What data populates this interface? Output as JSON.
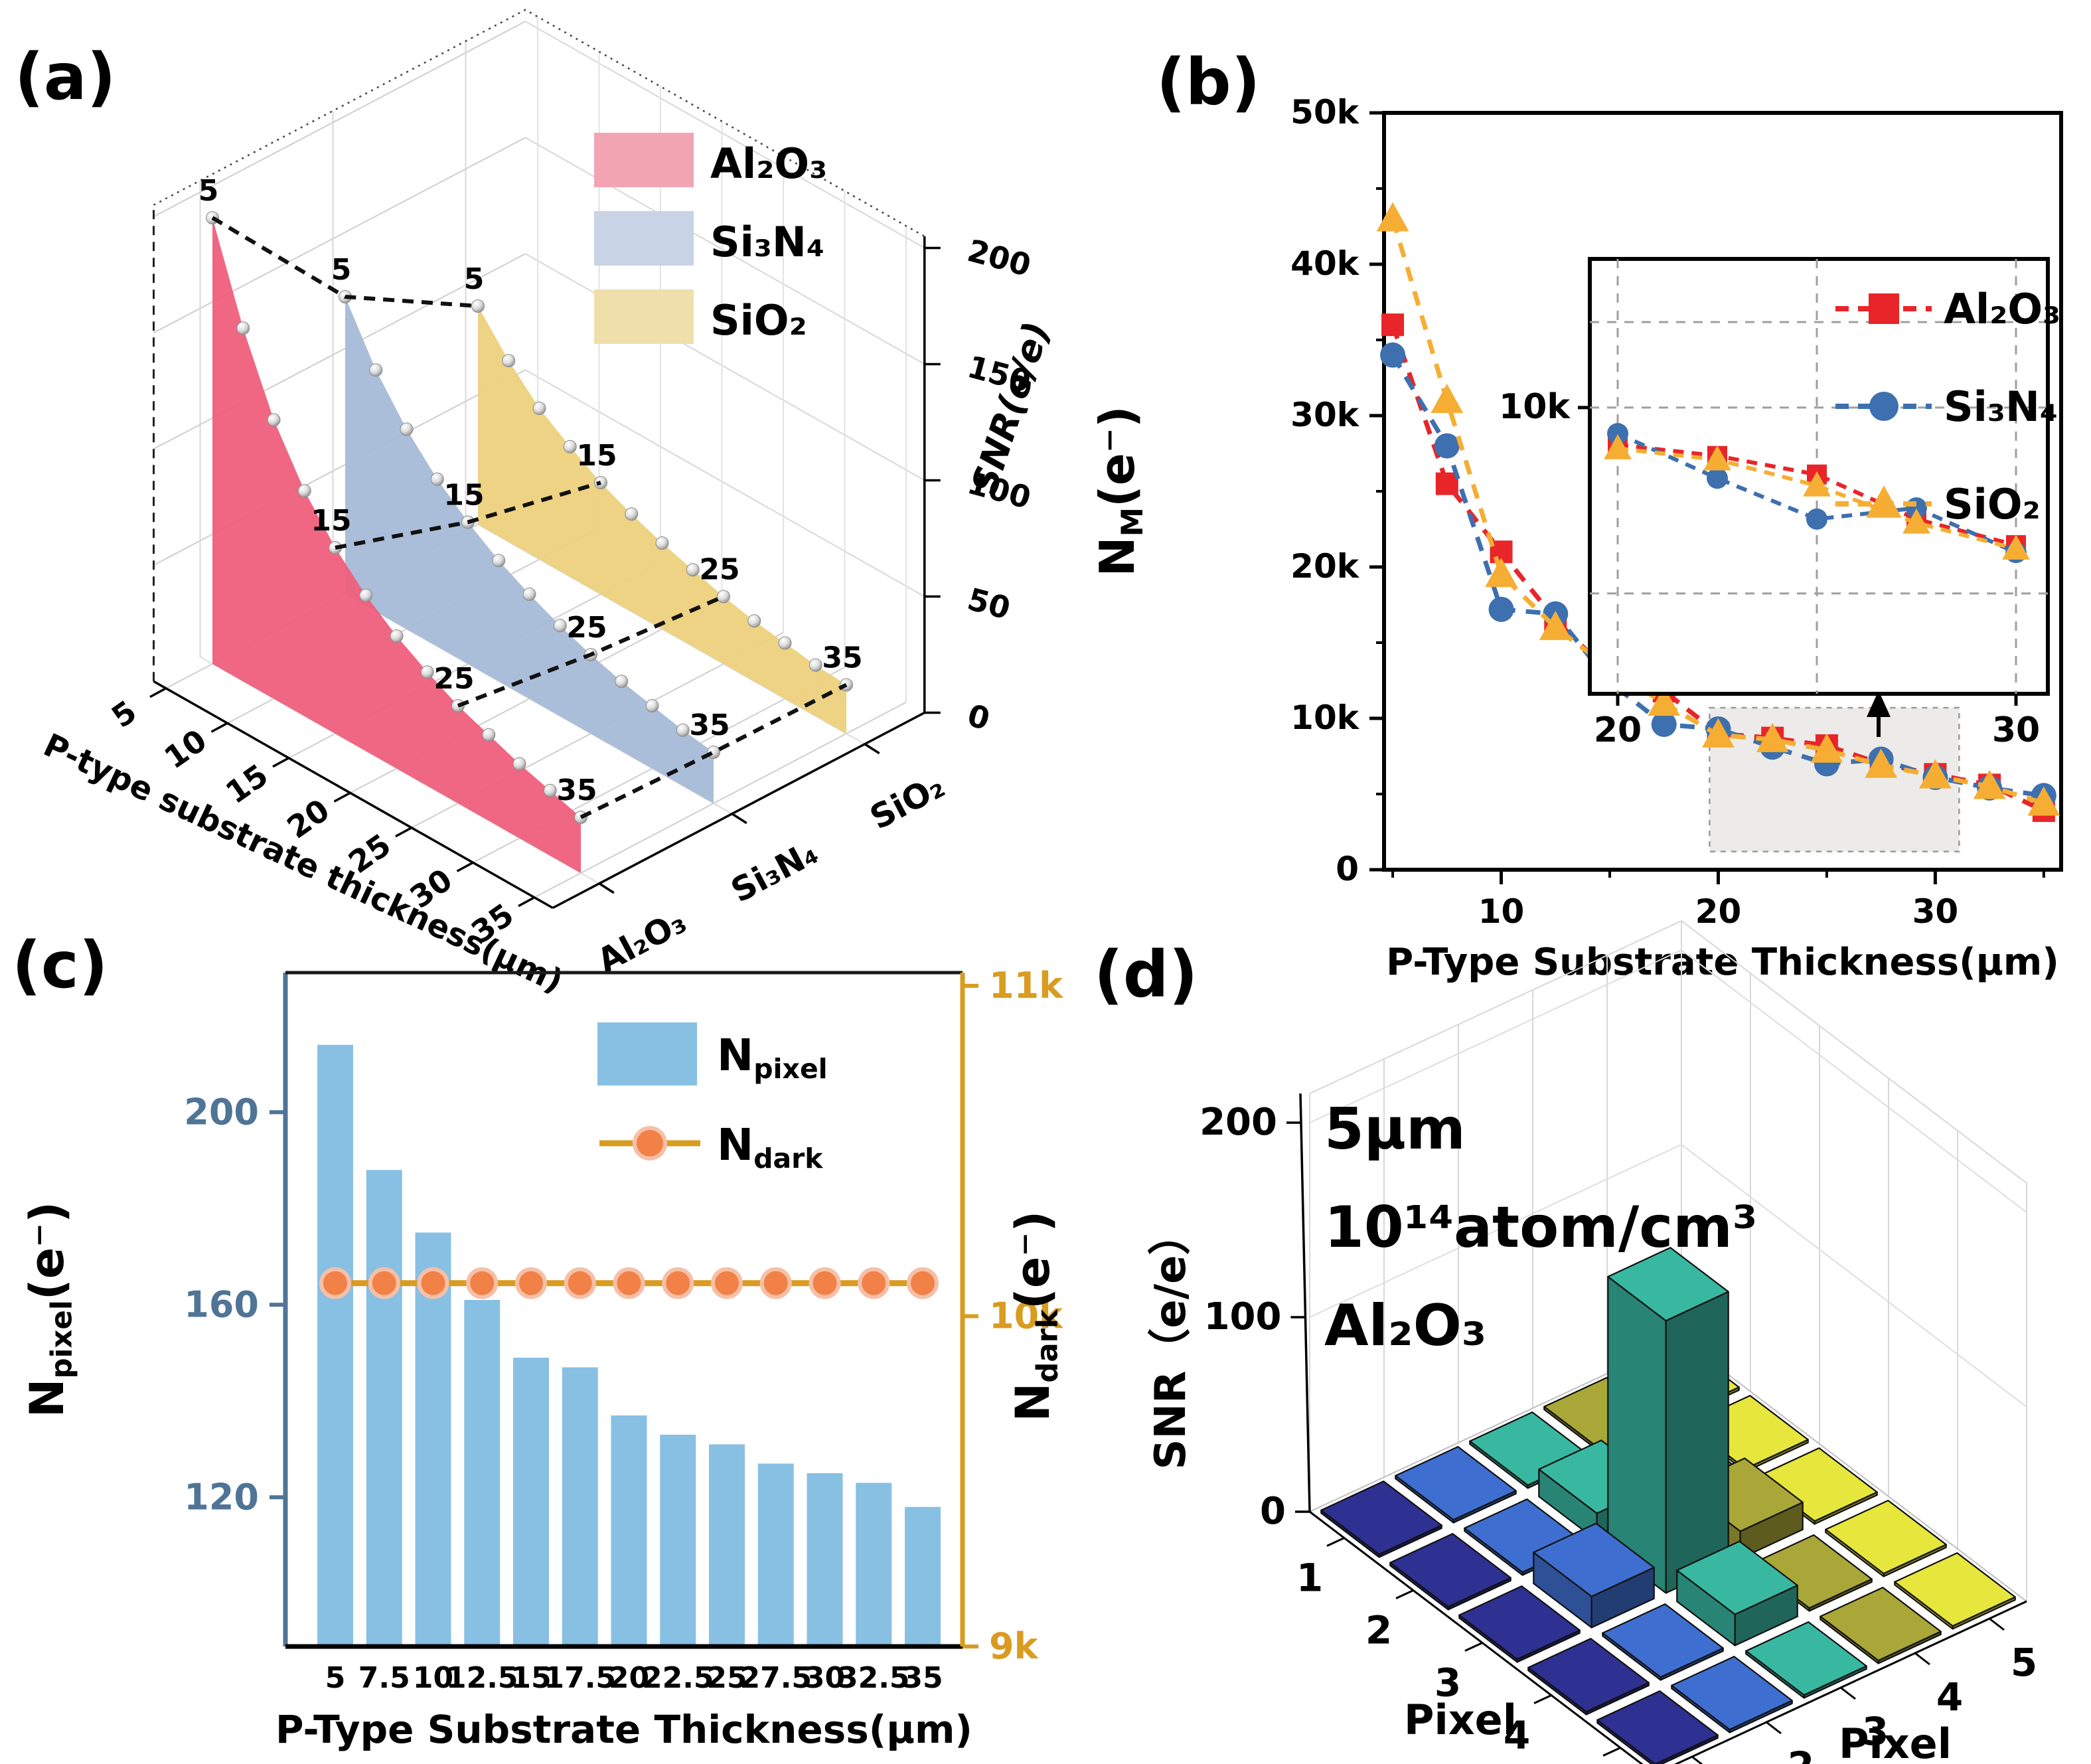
{
  "figure": {
    "background": "#ffffff"
  },
  "panels": {
    "a": {
      "label": "(a)"
    },
    "b": {
      "label": "(b)"
    },
    "c": {
      "label": "(c)"
    },
    "d": {
      "label": "(d)"
    }
  },
  "chart_data": [
    {
      "id": "a",
      "type": "ribbon3d",
      "xlabel": "P-type substrate thickness(μm)",
      "zlabel": "SNR(e/e)",
      "x": [
        5,
        7.5,
        10,
        12.5,
        15,
        17.5,
        20,
        22.5,
        25,
        27.5,
        30,
        32.5,
        35
      ],
      "xtick_labels": [
        "5",
        "10",
        "15",
        "20",
        "25",
        "30",
        "35"
      ],
      "xticks": [
        5,
        10,
        15,
        20,
        25,
        30,
        35
      ],
      "ztick_labels": [
        "0",
        "50",
        "100",
        "150",
        "200"
      ],
      "zticks": [
        0,
        50,
        100,
        150,
        200
      ],
      "zlim": [
        0,
        200
      ],
      "connector_thicknesses": [
        5,
        15,
        25,
        35
      ],
      "marker_color": "#d9d9d9",
      "series": [
        {
          "name": "Al2O3",
          "label": "Al₂O₃",
          "ribbon_color": "#ee5f7b",
          "legend_color": "#f2a4b2",
          "values": [
            192,
            152,
            120,
            97,
            80,
            67,
            57,
            49,
            42,
            37,
            32,
            28,
            24
          ]
        },
        {
          "name": "Si3N4",
          "label": "Si₃N₄",
          "ribbon_color": "#a6bbd7",
          "legend_color": "#c8d3e5",
          "values": [
            128,
            104,
            86,
            72,
            61,
            52,
            45,
            39,
            34,
            30,
            27,
            24,
            22
          ]
        },
        {
          "name": "SiO2",
          "label": "SiO₂",
          "ribbon_color": "#ecd17c",
          "legend_color": "#eedfab",
          "values": [
            94,
            78,
            65,
            56,
            48,
            42,
            37,
            33,
            29,
            26,
            24,
            22,
            21
          ]
        }
      ]
    },
    {
      "id": "b",
      "type": "line",
      "xlabel": "P-Type Substrate Thickness(μm)",
      "ylabel_parts": [
        {
          "t": "N"
        },
        {
          "t": "M",
          "sub": true
        },
        {
          "t": "(e⁻)"
        }
      ],
      "xlim": [
        4.6,
        35.8
      ],
      "ylim": [
        0,
        50000
      ],
      "x": [
        5,
        7.5,
        10,
        12.5,
        15,
        17.5,
        20,
        22.5,
        25,
        27.5,
        30,
        32.5,
        35
      ],
      "xticks": [
        {
          "v": 10,
          "label": "10"
        },
        {
          "v": 20,
          "label": "20"
        },
        {
          "v": 30,
          "label": "30"
        }
      ],
      "xminor": [
        5,
        15,
        25,
        35
      ],
      "yticks": [
        {
          "v": 0,
          "label": "0"
        },
        {
          "v": 10000,
          "label": "10k"
        },
        {
          "v": 20000,
          "label": "20k"
        },
        {
          "v": 30000,
          "label": "30k"
        },
        {
          "v": 40000,
          "label": "40k"
        },
        {
          "v": 50000,
          "label": "50k"
        }
      ],
      "yminor": [
        5000,
        15000,
        25000,
        35000,
        45000
      ],
      "series": [
        {
          "name": "Al2O3",
          "label": "Al₂O₃",
          "color": "#e82529",
          "marker": "square",
          "values": [
            36000,
            25500,
            21000,
            16500,
            13000,
            11800,
            9000,
            8700,
            8200,
            7000,
            6300,
            5600,
            3900
          ]
        },
        {
          "name": "Si3N4",
          "label": "Si₃N₄",
          "color": "#3e6fae",
          "marker": "circle",
          "values": [
            34000,
            28000,
            17200,
            16900,
            12400,
            9600,
            9300,
            8100,
            7000,
            7300,
            6100,
            5400,
            4900
          ]
        },
        {
          "name": "SiO2",
          "label": "SiO₂",
          "color": "#f5ae33",
          "marker": "triangle",
          "values": [
            43000,
            31000,
            19500,
            16000,
            13300,
            11000,
            8900,
            8600,
            7900,
            6900,
            6200,
            5500,
            4400
          ]
        }
      ],
      "highlight_region": {
        "x0": 19.6,
        "x1": 31.1,
        "fill": "#ecebe9",
        "stroke": "#9a9a9a"
      },
      "inset": {
        "xlim": [
          19.3,
          30.8
        ],
        "ylim": [
          2300,
          14000
        ],
        "gridx": [
          20,
          25,
          30
        ],
        "gridy": [
          12300,
          10000,
          5000
        ],
        "ytick": {
          "v": 10000,
          "label": "10k"
        },
        "xtick_labels": [
          {
            "v": 20,
            "label": "20"
          },
          {
            "v": 30,
            "label": "30"
          }
        ],
        "points_x": [
          20,
          22.5,
          25,
          27.5,
          30
        ]
      }
    },
    {
      "id": "c",
      "type": "bar-line",
      "xlabel": "P-Type Substrate Thickness(μm)",
      "ylabel_left_parts": [
        {
          "t": "N"
        },
        {
          "t": "pixel",
          "sub": true
        },
        {
          "t": "(e⁻)"
        }
      ],
      "ylabel_right_parts": [
        {
          "t": "N"
        },
        {
          "t": "dark",
          "sub": true
        },
        {
          "t": "(e⁻)"
        }
      ],
      "categories": [
        "5",
        "7.5",
        "10",
        "12.5",
        "15",
        "17.5",
        "20",
        "22.5",
        "25",
        "27.5",
        "30",
        "32.5",
        "35"
      ],
      "bar_values": [
        214,
        188,
        175,
        161,
        149,
        147,
        137,
        133,
        131,
        127,
        125,
        123,
        118
      ],
      "bar_color": "#88c0e4",
      "left_axis": {
        "color": "#4f7496",
        "lim": [
          89,
          229
        ],
        "ticks": [
          {
            "v": 120,
            "label": "120"
          },
          {
            "v": 160,
            "label": "160"
          },
          {
            "v": 200,
            "label": "200"
          }
        ]
      },
      "right_axis": {
        "color": "#d99c20",
        "lim": [
          9,
          11.04
        ],
        "ticks": [
          {
            "v": 9,
            "label": "9k"
          },
          {
            "v": 10,
            "label": "10k"
          },
          {
            "v": 11,
            "label": "11k"
          }
        ]
      },
      "line": {
        "value_k": 10.1,
        "color": "#d99c20",
        "marker_fill": "#f18147",
        "marker_stroke": "#f6c0a8",
        "label_parts": [
          {
            "t": "N"
          },
          {
            "t": "dark",
            "sub": true
          }
        ]
      },
      "legend": {
        "bar_label_parts": [
          {
            "t": "N"
          },
          {
            "t": "pixel",
            "sub": true
          }
        ]
      }
    },
    {
      "id": "d",
      "type": "bar3d",
      "title_lines": [
        "5μm",
        "10¹⁴atom/cm³",
        "Al₂O₃"
      ],
      "zlabel": "SNR（e/e）",
      "zticks": [
        {
          "v": 0,
          "label": "0"
        },
        {
          "v": 100,
          "label": "100"
        },
        {
          "v": 200,
          "label": "200"
        }
      ],
      "axis_label_left": "Pixel",
      "axis_label_right": "Pixel",
      "axis_ticks": [
        "1",
        "2",
        "3",
        "4",
        "5"
      ],
      "colors_by_col": [
        "#2e3092",
        "#3e6fd0",
        "#38b8a1",
        "#a9a737",
        "#e6e63c"
      ],
      "heights": [
        [
          1.5,
          1.5,
          1.5,
          1.5,
          1.5
        ],
        [
          1.5,
          1.5,
          14,
          6,
          1.5
        ],
        [
          1.5,
          16,
          140,
          14,
          1.5
        ],
        [
          1.5,
          1.5,
          16,
          1.5,
          1.5
        ],
        [
          1.5,
          1.5,
          1.5,
          1.5,
          1.5
        ]
      ]
    }
  ]
}
